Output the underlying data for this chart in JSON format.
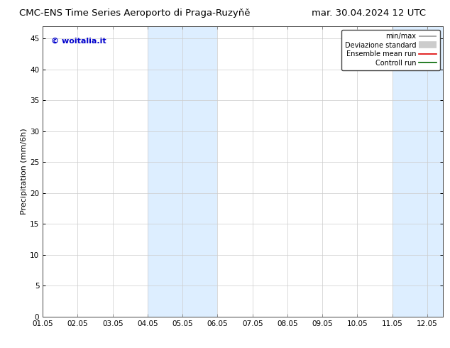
{
  "title_left": "CMC-ENS Time Series Aeroporto di Praga-Ruzyňě",
  "title_right": "mar. 30.04.2024 12 UTC",
  "ylabel": "Precipitation (mm/6h)",
  "ylim": [
    0,
    47
  ],
  "yticks": [
    0,
    5,
    10,
    15,
    20,
    25,
    30,
    35,
    40,
    45
  ],
  "xlim_start": 0,
  "xlim_end": 275,
  "xtick_labels": [
    "01.05",
    "02.05",
    "03.05",
    "04.05",
    "05.05",
    "06.05",
    "07.05",
    "08.05",
    "09.05",
    "10.05",
    "11.05",
    "12.05"
  ],
  "xtick_positions": [
    0,
    24,
    48,
    72,
    96,
    120,
    144,
    168,
    192,
    216,
    240,
    264
  ],
  "shaded_bands": [
    {
      "x_start": 72,
      "x_end": 120,
      "color": "#ddeeff"
    },
    {
      "x_start": 240,
      "x_end": 275,
      "color": "#ddeeff"
    }
  ],
  "watermark_text": "© woitalia.it",
  "watermark_color": "#0000cc",
  "legend_items": [
    {
      "label": "min/max",
      "color": "#999999",
      "linewidth": 1.2
    },
    {
      "label": "Deviazione standard",
      "color": "#cccccc",
      "linewidth": 7
    },
    {
      "label": "Ensemble mean run",
      "color": "#dd0000",
      "linewidth": 1.2
    },
    {
      "label": "Controll run",
      "color": "#006600",
      "linewidth": 1.2
    }
  ],
  "background_color": "#ffffff",
  "plot_bg_color": "#ffffff",
  "spine_color": "#444444",
  "grid_color": "#cccccc",
  "title_fontsize": 9.5,
  "axis_label_fontsize": 8,
  "tick_fontsize": 7.5,
  "watermark_fontsize": 8,
  "legend_fontsize": 7
}
